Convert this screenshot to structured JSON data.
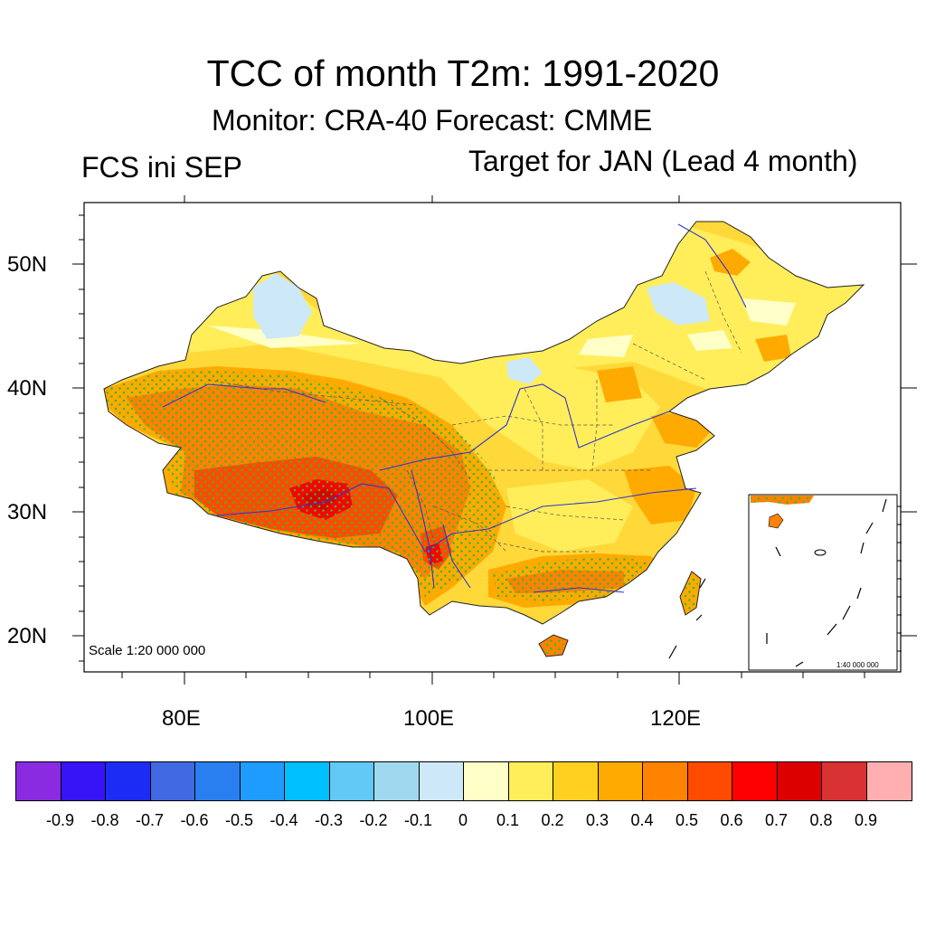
{
  "title": "TCC of month T2m: 1991-2020",
  "subtitle": "Monitor: CRA-40   Forecast: CMME",
  "left_label": "FCS ini SEP",
  "right_label": "Target for JAN (Lead 4 month)",
  "scale_main": "Scale 1:20 000 000",
  "scale_inset": "1:40 000 000",
  "lat_ticks": [
    {
      "label": "50N",
      "lat": 50
    },
    {
      "label": "40N",
      "lat": 40
    },
    {
      "label": "30N",
      "lat": 30
    },
    {
      "label": "20N",
      "lat": 20
    }
  ],
  "lon_ticks": [
    {
      "label": "80E",
      "lon": 80
    },
    {
      "label": "100E",
      "lon": 100
    },
    {
      "label": "120E",
      "lon": 120
    }
  ],
  "colorbar": {
    "colors": [
      "#8a2be2",
      "#3614f5",
      "#1c2cf5",
      "#4169e1",
      "#2a7ff0",
      "#1e9cff",
      "#00bfff",
      "#62c8f5",
      "#a0d8f0",
      "#cde9f7",
      "#ffffc8",
      "#ffee5a",
      "#ffd020",
      "#ffaa00",
      "#ff8200",
      "#ff4b00",
      "#ff0000",
      "#dc0000",
      "#d83232",
      "#ffafaf"
    ],
    "labels": [
      "-0.9",
      "-0.8",
      "-0.7",
      "-0.6",
      "-0.5",
      "-0.4",
      "-0.3",
      "-0.2",
      "-0.1",
      "0",
      "0.1",
      "0.2",
      "0.3",
      "0.4",
      "0.5",
      "0.6",
      "0.7",
      "0.8",
      "0.9"
    ]
  }
}
